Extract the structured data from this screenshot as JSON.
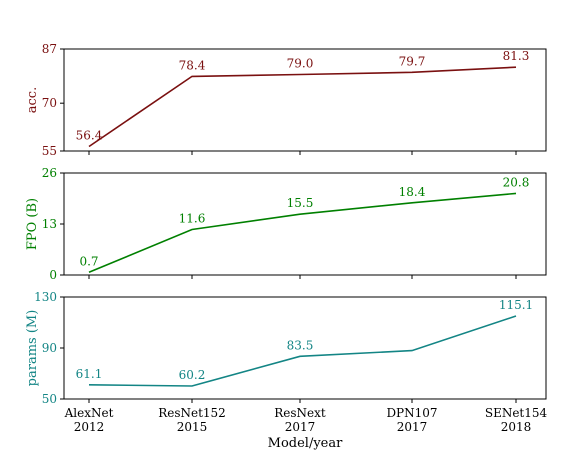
{
  "chart_data": [
    {
      "type": "line",
      "ylabel": "acc.",
      "color": "#7a1010",
      "ylim": [
        55,
        87
      ],
      "yticks": [
        55,
        70,
        87
      ],
      "ytick_labels": [
        "55",
        "70",
        "87"
      ],
      "values": [
        56.4,
        78.4,
        79.0,
        79.7,
        81.3
      ],
      "data_labels": [
        "56.4",
        "78.4",
        "79.0",
        "79.7",
        "81.3"
      ]
    },
    {
      "type": "line",
      "ylabel": "FPO (B)",
      "color": "#008000",
      "ylim": [
        0,
        26
      ],
      "yticks": [
        0,
        13,
        26
      ],
      "ytick_labels": [
        "0",
        "13",
        "26"
      ],
      "values": [
        0.7,
        11.6,
        15.5,
        18.4,
        20.8
      ],
      "data_labels": [
        "0.7",
        "11.6",
        "15.5",
        "18.4",
        "20.8"
      ]
    },
    {
      "type": "line",
      "ylabel": "params (M)",
      "color": "#138585",
      "ylim": [
        50,
        130
      ],
      "yticks": [
        50,
        90,
        130
      ],
      "ytick_labels": [
        "50",
        "90",
        "130"
      ],
      "values": [
        61.1,
        60.2,
        83.5,
        88.0,
        115.1
      ],
      "data_labels": [
        "61.1",
        "60.2",
        "83.5",
        "",
        "115.1"
      ],
      "x_categories": [
        [
          "AlexNet",
          "2012"
        ],
        [
          "ResNet152",
          "2015"
        ],
        [
          "ResNext",
          "2017"
        ],
        [
          "DPN107",
          "2017"
        ],
        [
          "SENet154",
          "2018"
        ]
      ],
      "xlabel": "Model/year"
    }
  ]
}
